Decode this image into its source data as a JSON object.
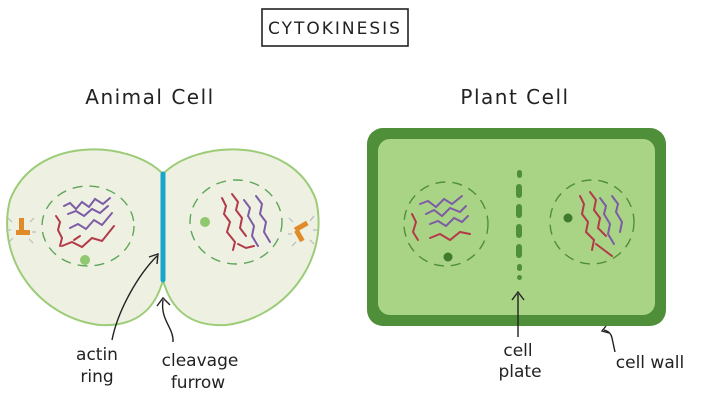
{
  "title": "CYTOKINESIS",
  "animal": {
    "heading": "Animal Cell",
    "labels": {
      "actin_ring": [
        "actin",
        "ring"
      ],
      "cleavage_furrow": [
        "cleavage",
        "furrow"
      ]
    }
  },
  "plant": {
    "heading": "Plant Cell",
    "labels": {
      "cell_plate": [
        "cell",
        "plate"
      ],
      "cell_wall": "cell wall"
    }
  },
  "colors": {
    "cytoplasm": "#eef1e2",
    "membrane": "#9ccc78",
    "envelope": "#5ea65a",
    "nucleolus": "#8fc86f",
    "chromosome_red": "#b33a48",
    "chromosome_purple": "#7d5ba6",
    "furrow": "#1aa6c8",
    "centrosome": "#e08a2a",
    "cell_wall": "#4f8f3a",
    "plant_cytoplasm": "#a9d485",
    "plate": "#4f8f3a"
  }
}
